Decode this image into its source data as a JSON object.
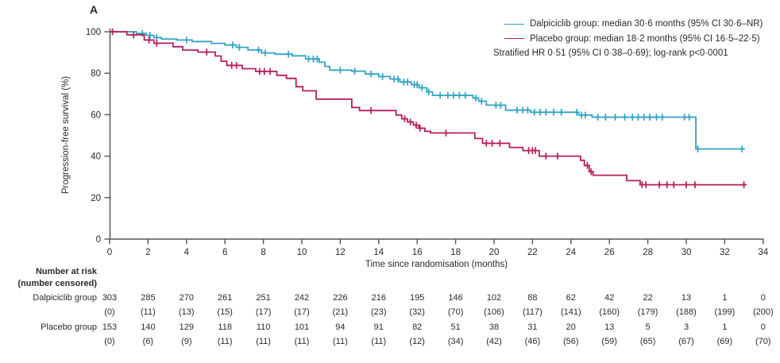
{
  "panel_label": "A",
  "colors": {
    "dalpiciclib": "#33a3c4",
    "placebo": "#b51e5c",
    "axis": "#55565a",
    "text": "#2d2a26"
  },
  "legend": {
    "entries": [
      {
        "label": "Dalpiciclib group: median 30·6 months (95% CI 30·6–NR)",
        "color": "#33a3c4"
      },
      {
        "label": "Placebo group: median 18·2 months (95% CI 16·5–22·5)",
        "color": "#b51e5c"
      }
    ],
    "note": "Stratified HR 0·51 (95% CI 0·38–0·69); log-rank p<0·0001"
  },
  "chart_data": {
    "type": "line",
    "subtype": "kaplan-meier-step",
    "title": "",
    "xlabel": "Time since randomisation (months)",
    "ylabel": "Progression-free survival (%)",
    "xlim": [
      0,
      34
    ],
    "ylim": [
      0,
      100
    ],
    "xticks": [
      0,
      2,
      4,
      6,
      8,
      10,
      12,
      14,
      16,
      18,
      20,
      22,
      24,
      26,
      28,
      30,
      32,
      34
    ],
    "yticks": [
      0,
      20,
      40,
      60,
      80,
      100
    ],
    "grid": false,
    "legend_position": "top-right",
    "series": [
      {
        "name": "Dalpiciclib group",
        "color": "#33a3c4",
        "median_months": "30·6",
        "start": [
          0,
          100
        ],
        "end_month": 33.0,
        "steps": [
          [
            1.4,
            99.2
          ],
          [
            1.9,
            98.3
          ],
          [
            2.3,
            97.2
          ],
          [
            2.7,
            96.5
          ],
          [
            3.5,
            96
          ],
          [
            4.3,
            95.3
          ],
          [
            5.3,
            94.4
          ],
          [
            6,
            93.6
          ],
          [
            6.6,
            92.5
          ],
          [
            7.2,
            91.2
          ],
          [
            7.9,
            89.8
          ],
          [
            8.6,
            89.2
          ],
          [
            9.5,
            88.4
          ],
          [
            10.2,
            86.9
          ],
          [
            10.9,
            85.3
          ],
          [
            11.2,
            83.3
          ],
          [
            11.45,
            81.5
          ],
          [
            12.6,
            81
          ],
          [
            13.3,
            79.6
          ],
          [
            14,
            78.4
          ],
          [
            14.6,
            77.2
          ],
          [
            15.1,
            75.8
          ],
          [
            15.7,
            74.5
          ],
          [
            16.1,
            73
          ],
          [
            16.5,
            71
          ],
          [
            16.8,
            69.3
          ],
          [
            18.9,
            68
          ],
          [
            19.2,
            66.5
          ],
          [
            19.6,
            64.6
          ],
          [
            20.6,
            62.2
          ],
          [
            21.9,
            61.2
          ],
          [
            24.4,
            59.8
          ],
          [
            25.1,
            58.8
          ],
          [
            30.5,
            43.5
          ]
        ],
        "censors": [
          [
            1.7,
            99.2
          ],
          [
            2.1,
            98.3
          ],
          [
            2.45,
            97.2
          ],
          [
            4,
            96
          ],
          [
            6.4,
            93.6
          ],
          [
            6.75,
            92.5
          ],
          [
            7.75,
            91.2
          ],
          [
            8.1,
            89.8
          ],
          [
            9.3,
            89.2
          ],
          [
            10.35,
            86.9
          ],
          [
            10.6,
            86.9
          ],
          [
            10.8,
            86.9
          ],
          [
            12,
            81.5
          ],
          [
            12.75,
            81
          ],
          [
            13.6,
            79.6
          ],
          [
            14.2,
            78.4
          ],
          [
            14.8,
            77.2
          ],
          [
            15,
            77.2
          ],
          [
            15.3,
            75.8
          ],
          [
            15.5,
            75.8
          ],
          [
            15.85,
            74.5
          ],
          [
            16,
            74.5
          ],
          [
            16.25,
            73
          ],
          [
            16.6,
            71
          ],
          [
            17.2,
            69.3
          ],
          [
            17.6,
            69.3
          ],
          [
            17.9,
            69.3
          ],
          [
            18.2,
            69.3
          ],
          [
            18.5,
            69.3
          ],
          [
            19.05,
            68
          ],
          [
            19.35,
            66.5
          ],
          [
            20.1,
            64.6
          ],
          [
            20.35,
            64.6
          ],
          [
            21.2,
            62.2
          ],
          [
            21.5,
            62.2
          ],
          [
            21.75,
            62.2
          ],
          [
            22.1,
            61.2
          ],
          [
            22.4,
            61.2
          ],
          [
            22.7,
            61.2
          ],
          [
            23.1,
            61.2
          ],
          [
            23.5,
            61.2
          ],
          [
            24.3,
            61.2
          ],
          [
            24.55,
            59.8
          ],
          [
            24.75,
            59.8
          ],
          [
            25.4,
            58.8
          ],
          [
            25.8,
            58.8
          ],
          [
            26.3,
            58.8
          ],
          [
            26.8,
            58.8
          ],
          [
            27.2,
            58.8
          ],
          [
            27.5,
            58.8
          ],
          [
            27.8,
            58.8
          ],
          [
            28.1,
            58.8
          ],
          [
            28.45,
            58.8
          ],
          [
            28.75,
            58.8
          ],
          [
            29.9,
            58.8
          ],
          [
            30.15,
            58.8
          ],
          [
            30.6,
            43.5
          ],
          [
            32.9,
            43.5
          ]
        ]
      },
      {
        "name": "Placebo group",
        "color": "#b51e5c",
        "median_months": "18·2",
        "start": [
          0,
          100
        ],
        "end_month": 33.1,
        "steps": [
          [
            0.9,
            98.5
          ],
          [
            1.8,
            96
          ],
          [
            2.3,
            94.5
          ],
          [
            3.3,
            92.8
          ],
          [
            3.8,
            91.2
          ],
          [
            4.6,
            90.2
          ],
          [
            5.5,
            88.3
          ],
          [
            5.8,
            85.8
          ],
          [
            6.1,
            83.8
          ],
          [
            6.9,
            82.2
          ],
          [
            7.6,
            80.9
          ],
          [
            8.7,
            79
          ],
          [
            9.2,
            77.5
          ],
          [
            9.7,
            73.5
          ],
          [
            10.05,
            71.5
          ],
          [
            10.75,
            67.5
          ],
          [
            12.6,
            63.5
          ],
          [
            13,
            62
          ],
          [
            14.9,
            59.8
          ],
          [
            15.2,
            58
          ],
          [
            15.5,
            56.5
          ],
          [
            15.8,
            55
          ],
          [
            16.1,
            53.5
          ],
          [
            16.4,
            52
          ],
          [
            16.7,
            51.2
          ],
          [
            19,
            48.5
          ],
          [
            19.4,
            46.2
          ],
          [
            20.8,
            44.2
          ],
          [
            21.5,
            42.7
          ],
          [
            22.35,
            40
          ],
          [
            24.5,
            38
          ],
          [
            24.7,
            35.5
          ],
          [
            24.95,
            32.5
          ],
          [
            25.15,
            30.8
          ],
          [
            26.9,
            28.2
          ],
          [
            27.6,
            26.2
          ]
        ],
        "censors": [
          [
            0.15,
            100
          ],
          [
            1.25,
            98.5
          ],
          [
            2.05,
            96
          ],
          [
            2.45,
            94.5
          ],
          [
            5.05,
            90.2
          ],
          [
            6.35,
            83.8
          ],
          [
            6.6,
            83.8
          ],
          [
            7.8,
            80.9
          ],
          [
            8.05,
            80.9
          ],
          [
            8.35,
            80.9
          ],
          [
            13.6,
            62
          ],
          [
            15.35,
            58
          ],
          [
            15.65,
            56.5
          ],
          [
            15.95,
            55
          ],
          [
            16.15,
            53.5
          ],
          [
            17.5,
            51.2
          ],
          [
            19.6,
            46.2
          ],
          [
            19.9,
            46.2
          ],
          [
            20.3,
            46.2
          ],
          [
            21.8,
            42.7
          ],
          [
            22,
            42.7
          ],
          [
            22.15,
            42.7
          ],
          [
            22.7,
            40
          ],
          [
            23.3,
            40
          ],
          [
            24.85,
            35.5
          ],
          [
            25.05,
            32.5
          ],
          [
            27.7,
            26.2
          ],
          [
            27.9,
            26.2
          ],
          [
            28.6,
            26.2
          ],
          [
            29,
            26.2
          ],
          [
            29.35,
            26.2
          ],
          [
            30,
            26.2
          ],
          [
            30.45,
            26.2
          ],
          [
            33,
            26.2
          ]
        ]
      }
    ]
  },
  "risk_table": {
    "header": "Number at risk",
    "subheader": "(number censored)",
    "timepoints": [
      0,
      2,
      4,
      6,
      8,
      10,
      12,
      14,
      16,
      18,
      20,
      22,
      24,
      26,
      28,
      30,
      32,
      34
    ],
    "rows": [
      {
        "label": "Dalpiciclib group",
        "at_risk": [
          "303",
          "285",
          "270",
          "261",
          "251",
          "242",
          "226",
          "216",
          "195",
          "146",
          "102",
          "88",
          "62",
          "42",
          "22",
          "13",
          "1",
          "0"
        ],
        "censored": [
          "(0)",
          "(11)",
          "(13)",
          "(15)",
          "(17)",
          "(17)",
          "(21)",
          "(23)",
          "(32)",
          "(70)",
          "(106)",
          "(117)",
          "(141)",
          "(160)",
          "(179)",
          "(188)",
          "(199)",
          "(200)"
        ]
      },
      {
        "label": "Placebo group",
        "at_risk": [
          "153",
          "140",
          "129",
          "118",
          "110",
          "101",
          "94",
          "91",
          "82",
          "51",
          "38",
          "31",
          "20",
          "13",
          "5",
          "3",
          "1",
          "0"
        ],
        "censored": [
          "(0)",
          "(6)",
          "(9)",
          "(11)",
          "(11)",
          "(11)",
          "(11)",
          "(11)",
          "(12)",
          "(34)",
          "(42)",
          "(46)",
          "(56)",
          "(59)",
          "(65)",
          "(67)",
          "(69)",
          "(70)"
        ]
      }
    ]
  }
}
